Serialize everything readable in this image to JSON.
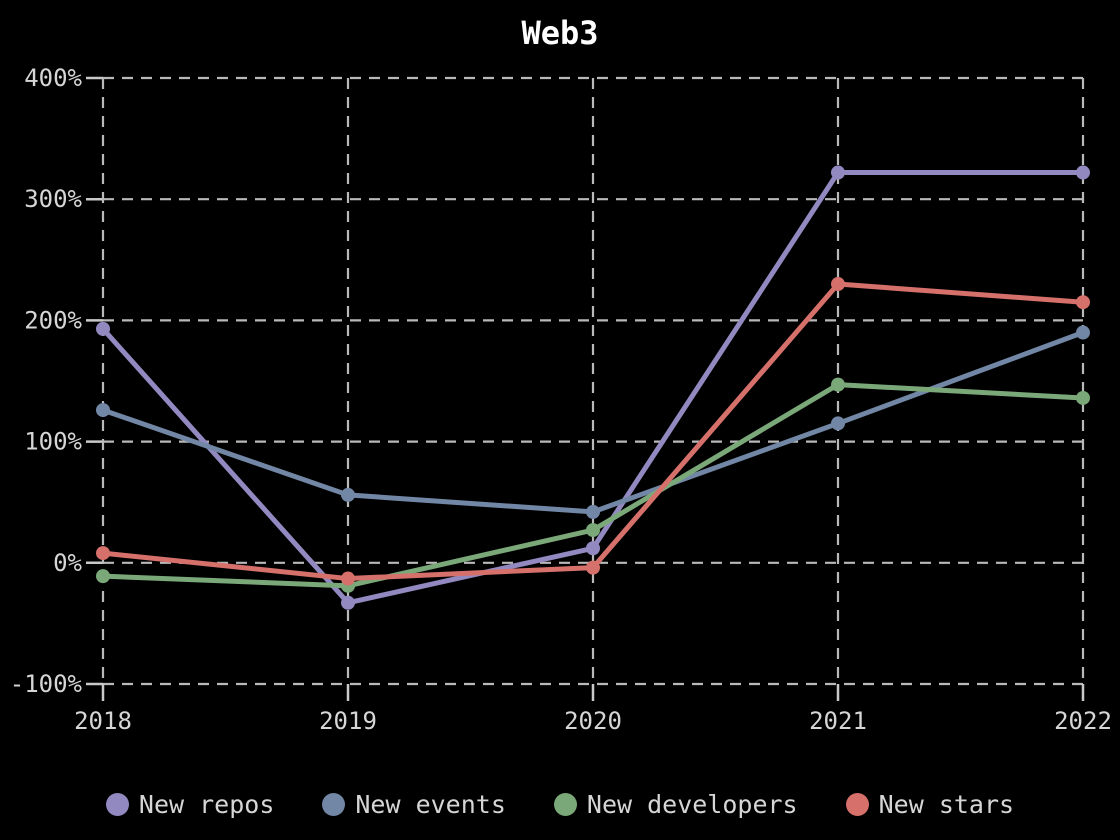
{
  "chart_data": {
    "type": "line",
    "title": "Web3",
    "categories": [
      "2018",
      "2019",
      "2020",
      "2021",
      "2022"
    ],
    "series": [
      {
        "name": "New repos",
        "color": "#9289c0",
        "values": [
          193,
          -33,
          12,
          322,
          322
        ]
      },
      {
        "name": "New events",
        "color": "#7187a5",
        "values": [
          126,
          56,
          42,
          115,
          190
        ]
      },
      {
        "name": "New developers",
        "color": "#7aa878",
        "values": [
          -11,
          -19,
          27,
          147,
          136
        ]
      },
      {
        "name": "New stars",
        "color": "#d5706b",
        "values": [
          8,
          -13,
          -4,
          230,
          215
        ]
      }
    ],
    "y_ticks": [
      "400%",
      "300%",
      "200%",
      "100%",
      "0%",
      "-100%"
    ],
    "y_tick_values": [
      400,
      300,
      200,
      100,
      0,
      -100
    ],
    "ylim": [
      -100,
      400
    ],
    "xlabel": "",
    "ylabel": "",
    "grid": "dashed",
    "legend_position": "bottom",
    "colors": {
      "background": "#000000",
      "title_text": "#ffffff",
      "axis_text": "#d6d6d6",
      "gridline": "#b9b9b9"
    }
  }
}
